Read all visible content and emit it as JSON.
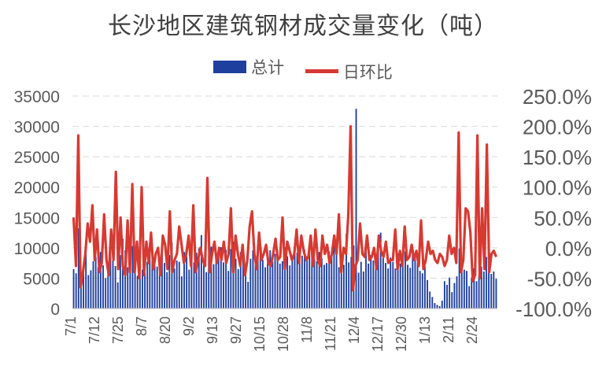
{
  "chart_data": {
    "type": "bar+line",
    "title": "长沙地区建筑钢材成交量变化（吨）",
    "legend_position": "top",
    "colors": {
      "bar": "#1f3f9e",
      "line": "#d63a32",
      "grid": "#d9d9d9",
      "text": "#595959"
    },
    "series": [
      {
        "name": "总计",
        "type": "bar",
        "axis": "left",
        "values": [
          6500,
          5800,
          13200,
          4000,
          6100,
          9000,
          5500,
          6300,
          7800,
          8500,
          6800,
          9300,
          7100,
          5000,
          6400,
          9500,
          7900,
          7000,
          4300,
          8800,
          11500,
          9600,
          6800,
          7500,
          10300,
          8200,
          5400,
          7800,
          6400,
          5900,
          7700,
          10800,
          8000,
          7000,
          6900,
          8400,
          9900,
          7500,
          6000,
          8800,
          10900,
          6600,
          7900,
          7700,
          5300,
          9300,
          8600,
          6400,
          8100,
          7600,
          9200,
          9900,
          12100,
          7900,
          6000,
          8700,
          10200,
          7300,
          8100,
          9000,
          10100,
          7600,
          9700,
          6200,
          9800,
          11000,
          8200,
          6500,
          9300,
          8100,
          7000,
          4400,
          8200,
          9600,
          7100,
          9900,
          10100,
          8000,
          6800,
          8500,
          9600,
          7700,
          9000,
          9700,
          7400,
          7800,
          10100,
          8600,
          7100,
          8600,
          9000,
          9200,
          7900,
          8700,
          9700,
          8600,
          10200,
          11000,
          8100,
          7800,
          9300,
          8300,
          7200,
          7500,
          9400,
          8600,
          10600,
          8900,
          6800,
          8100,
          7200,
          12300,
          7600,
          8500,
          10400,
          32900,
          5900,
          7700,
          6100,
          9800,
          7400,
          8800,
          7900,
          8900,
          9700,
          12500,
          8300,
          7500,
          6600,
          8400,
          7700,
          6600,
          9100,
          7400,
          8700,
          9400,
          7200,
          6700,
          9500,
          8300,
          7500,
          6200,
          5800,
          6900,
          4700,
          2800,
          1900,
          900,
          600,
          400,
          1300,
          4500,
          3900,
          5100,
          2700,
          4200,
          5300,
          9900,
          7400,
          6400,
          6200,
          3700,
          5100,
          6600,
          4500,
          5400,
          6900,
          6100,
          8500,
          6600,
          5700,
          6100,
          4900
        ],
        "unit": "吨"
      },
      {
        "name": "日环比",
        "type": "line",
        "axis": "right",
        "values": [
          50,
          -30,
          185,
          -65,
          -40,
          -10,
          40,
          10,
          70,
          -20,
          30,
          -40,
          -25,
          55,
          -20,
          -45,
          30,
          -20,
          125,
          -35,
          50,
          -30,
          -45,
          45,
          -40,
          105,
          -40,
          10,
          -50,
          100,
          -45,
          10,
          -25,
          25,
          -35,
          -10,
          0,
          -45,
          20,
          5,
          -35,
          60,
          -40,
          -20,
          -10,
          35,
          5,
          -25,
          -10,
          20,
          -30,
          70,
          -40,
          -20,
          0,
          -20,
          -30,
          115,
          -40,
          -10,
          10,
          -25,
          0,
          -20,
          10,
          -25,
          -10,
          65,
          -40,
          20,
          -10,
          -30,
          5,
          -45,
          -20,
          35,
          60,
          -10,
          -35,
          25,
          -20,
          -10,
          5,
          -25,
          -30,
          -10,
          15,
          -20,
          -15,
          50,
          -35,
          10,
          -5,
          -20,
          -10,
          30,
          -25,
          20,
          -5,
          -20,
          -15,
          20,
          -30,
          30,
          -20,
          -30,
          20,
          -10,
          5,
          -25,
          -10,
          20,
          -10,
          55,
          -40,
          0,
          -10,
          55,
          200,
          -70,
          -30,
          -20,
          40,
          -10,
          -15,
          20,
          -20,
          -15,
          0,
          -35,
          20,
          -5,
          -15,
          10,
          -25,
          -20,
          -20,
          30,
          -35,
          -5,
          -30,
          35,
          -20,
          -15,
          5,
          -20,
          -5,
          -30,
          45,
          -35,
          -20,
          10,
          -10,
          -5,
          -20,
          -25,
          -10,
          -15,
          -30,
          -20,
          20,
          -10,
          0,
          -25,
          190,
          -40,
          -20,
          65,
          60,
          25,
          -55,
          -45,
          185,
          -50,
          65,
          -35,
          170,
          -40,
          -10,
          -5,
          -15
        ]
      }
    ],
    "x": {
      "tick_labels": [
        "7/1",
        "7/12",
        "7/25",
        "8/7",
        "8/20",
        "9/2",
        "9/13",
        "9/27",
        "10/15",
        "10/28",
        "11/8",
        "11/21",
        "12/4",
        "12/17",
        "12/30",
        "1/13",
        "2/11",
        "2/24"
      ]
    },
    "y_left": {
      "min": 0,
      "max": 35000,
      "ticks": [
        "0",
        "5000",
        "10000",
        "15000",
        "20000",
        "25000",
        "30000",
        "35000"
      ]
    },
    "y_right": {
      "min": -100,
      "max": 250,
      "ticks": [
        "-100.0%",
        "-50.0%",
        "0.0%",
        "50.0%",
        "100.0%",
        "150.0%",
        "200.0%",
        "250.0%"
      ]
    },
    "gridlines": true
  }
}
